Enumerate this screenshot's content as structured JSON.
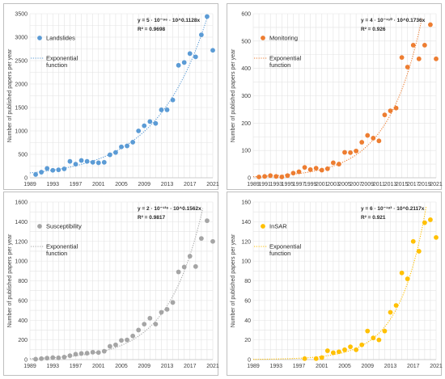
{
  "chart_data": [
    {
      "type": "scatter",
      "color": "#5b9bd5",
      "ylabel": "Number of published papers per year",
      "xlim": [
        1989,
        2021
      ],
      "ylim": [
        0,
        3500
      ],
      "yticks": [
        0,
        500,
        1000,
        1500,
        2000,
        2500,
        3000,
        3500
      ],
      "xticks": [
        1989,
        1993,
        1997,
        2001,
        2005,
        2009,
        2013,
        2017,
        2021
      ],
      "series": [
        {
          "name": "Landslides",
          "x": [
            1990,
            1991,
            1992,
            1993,
            1994,
            1995,
            1996,
            1997,
            1998,
            1999,
            2000,
            2001,
            2002,
            2003,
            2004,
            2005,
            2006,
            2007,
            2008,
            2009,
            2010,
            2011,
            2012,
            2013,
            2014,
            2015,
            2016,
            2017,
            2018,
            2019,
            2020,
            2021
          ],
          "y": [
            70,
            120,
            200,
            160,
            170,
            190,
            350,
            290,
            370,
            350,
            330,
            320,
            330,
            490,
            540,
            660,
            680,
            760,
            1000,
            1110,
            1200,
            1160,
            1450,
            1450,
            1660,
            2400,
            2460,
            2650,
            2580,
            3050,
            3440,
            2720
          ]
        },
        {
          "name": "Exponential function",
          "style": "dotted"
        }
      ],
      "equation": "y = 5 · 10⁻⁹⁶ · 10^0.1128x",
      "r2": "R² = 0.9698"
    },
    {
      "type": "scatter",
      "color": "#ed7d31",
      "ylabel": "Number of published papers per year",
      "xlim": [
        1989,
        2021
      ],
      "ylim": [
        0,
        600
      ],
      "yticks": [
        0,
        100,
        200,
        300,
        400,
        500,
        600
      ],
      "xticks": [
        1989,
        1991,
        1993,
        1995,
        1997,
        1999,
        2001,
        2003,
        2005,
        2007,
        2009,
        2011,
        2013,
        2015,
        2017,
        2019,
        2021
      ],
      "series": [
        {
          "name": "Monitoring",
          "x": [
            1990,
            1991,
            1992,
            1993,
            1994,
            1995,
            1996,
            1997,
            1998,
            1999,
            2000,
            2001,
            2002,
            2003,
            2004,
            2005,
            2006,
            2007,
            2008,
            2009,
            2010,
            2011,
            2012,
            2013,
            2014,
            2015,
            2016,
            2017,
            2018,
            2019,
            2020,
            2021
          ],
          "y": [
            3,
            5,
            8,
            5,
            3,
            8,
            17,
            22,
            38,
            30,
            35,
            28,
            33,
            55,
            50,
            93,
            92,
            98,
            130,
            155,
            145,
            135,
            230,
            245,
            255,
            440,
            405,
            485,
            435,
            485,
            560,
            435
          ]
        },
        {
          "name": "Exponential function",
          "style": "dotted"
        }
      ],
      "equation": "y = 4 · 10⁻¹⁵⁰ · 10^0.1736x",
      "r2": "R² = 0.926"
    },
    {
      "type": "scatter",
      "color": "#a5a5a5",
      "ylabel": "Number of published papers per year",
      "xlim": [
        1989,
        2021
      ],
      "ylim": [
        0,
        1600
      ],
      "yticks": [
        0,
        200,
        400,
        600,
        800,
        1000,
        1200,
        1400,
        1600
      ],
      "xticks": [
        1989,
        1993,
        1997,
        2001,
        2005,
        2009,
        2013,
        2017,
        2021
      ],
      "series": [
        {
          "name": "Susceptibility",
          "x": [
            1990,
            1991,
            1992,
            1993,
            1994,
            1995,
            1996,
            1997,
            1998,
            1999,
            2000,
            2001,
            2002,
            2003,
            2004,
            2005,
            2006,
            2007,
            2008,
            2009,
            2010,
            2011,
            2012,
            2013,
            2014,
            2015,
            2016,
            2017,
            2018,
            2019,
            2020,
            2021
          ],
          "y": [
            5,
            10,
            15,
            20,
            18,
            25,
            40,
            55,
            62,
            65,
            75,
            72,
            85,
            135,
            150,
            195,
            200,
            240,
            300,
            360,
            420,
            360,
            480,
            510,
            580,
            890,
            940,
            1050,
            945,
            1230,
            1410,
            1200
          ]
        },
        {
          "name": "Exponential function",
          "style": "dotted"
        }
      ],
      "equation": "y = 2 · 10⁻¹³⁶ · 10^0.1562x",
      "r2": "R² = 0.9817"
    },
    {
      "type": "scatter",
      "color": "#ffc000",
      "ylabel": "Number of published papers per year",
      "xlim": [
        1989,
        2021
      ],
      "ylim": [
        0,
        160
      ],
      "yticks": [
        0,
        20,
        40,
        60,
        80,
        100,
        120,
        140,
        160
      ],
      "xticks": [
        1989,
        1993,
        1997,
        2001,
        2005,
        2009,
        2013,
        2017,
        2021
      ],
      "series": [
        {
          "name": "InSAR",
          "x": [
            1998,
            2000,
            2001,
            2002,
            2003,
            2004,
            2005,
            2006,
            2007,
            2008,
            2009,
            2010,
            2011,
            2012,
            2013,
            2014,
            2015,
            2016,
            2017,
            2018,
            2019,
            2020,
            2021
          ],
          "y": [
            1,
            1,
            2,
            9,
            7,
            8,
            10,
            13,
            10,
            15,
            29,
            22,
            20,
            29,
            48,
            55,
            88,
            82,
            120,
            110,
            139,
            142,
            124
          ]
        },
        {
          "name": "Exponential function",
          "style": "dotted"
        }
      ],
      "equation": "y = 6 · 10⁻¹⁸³ · 10^0.2117x",
      "r2": "R² = 0.921"
    }
  ],
  "legend_exp_line1": "Exponential",
  "legend_exp_line2": "function"
}
